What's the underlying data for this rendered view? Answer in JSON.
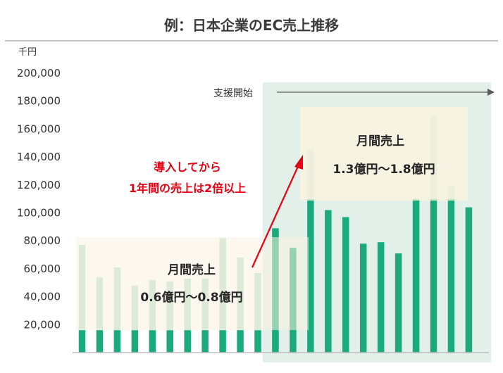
{
  "chart_data": {
    "type": "bar",
    "title": "例：日本企業のEC売上推移",
    "unit_label": "千円",
    "ylim": [
      0,
      200000
    ],
    "yticks": [
      "20,000",
      "40,000",
      "60,000",
      "80,000",
      "100,000",
      "120,000",
      "140,000",
      "160,000",
      "180,000",
      "200,000"
    ],
    "values": [
      77000,
      54000,
      61000,
      48000,
      52000,
      51000,
      53000,
      53000,
      82000,
      68000,
      57000,
      89000,
      75000,
      146000,
      102000,
      97000,
      78000,
      79000,
      71000,
      110000,
      169000,
      119000,
      104000
    ],
    "dark_cap": [
      16000,
      16000,
      16000,
      16000,
      16000,
      16000,
      16000,
      16000,
      16000,
      16000,
      16000,
      null,
      null,
      110000,
      null,
      null,
      null,
      null,
      null,
      null,
      110000,
      110000,
      null
    ],
    "support_start_index": 11,
    "support_label": "支援開始",
    "before_box": {
      "line1": "月間売上",
      "line2": "0.6億円〜0.8億円"
    },
    "after_box": {
      "line1": "月間売上",
      "line2": "1.3億円〜1.8億円"
    },
    "callout": {
      "line1": "導入してから",
      "line2": "1年間の売上は2倍以上"
    },
    "colors": {
      "dark": "#1aaa7d",
      "light": "#b6dfca",
      "support_bg": "#e3efe9",
      "box_bg": "#fbf3e1",
      "red": "#e60012"
    }
  }
}
